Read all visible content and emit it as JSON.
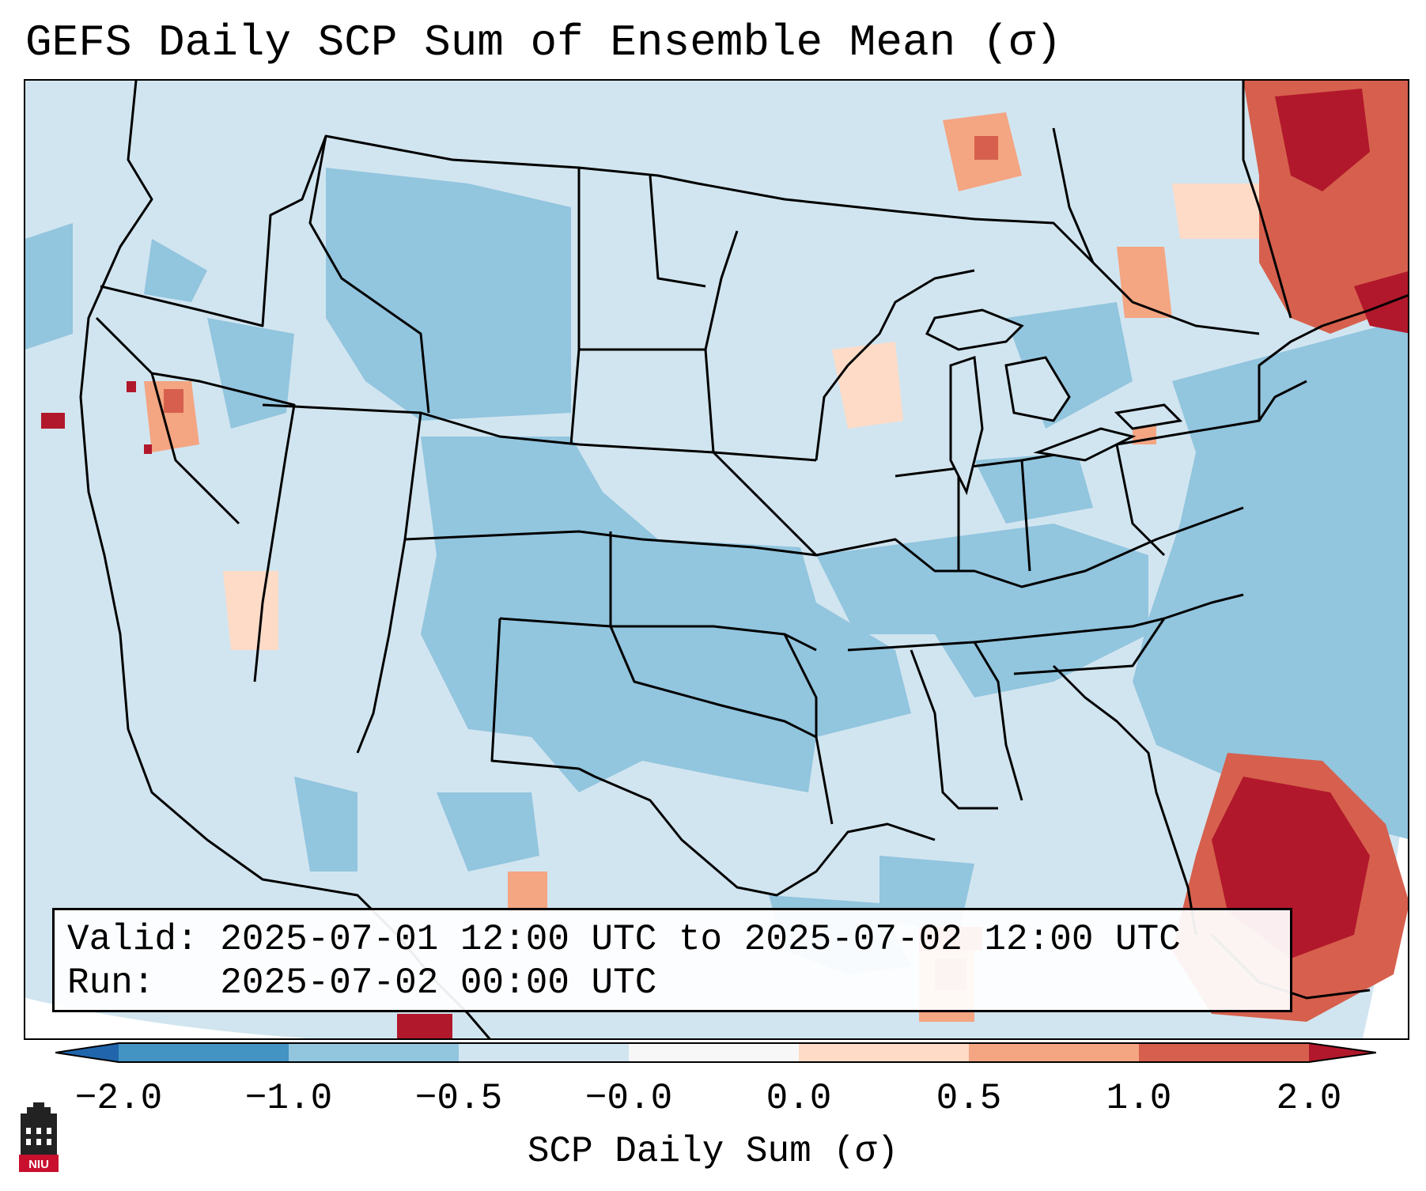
{
  "title": "GEFS Daily SCP Sum of Ensemble Mean (σ)",
  "info": {
    "valid_label": "Valid:",
    "valid_value": "2025-07-01 12:00 UTC to 2025-07-02 12:00 UTC",
    "run_label": "Run:",
    "run_value": "2025-07-02 00:00 UTC"
  },
  "colorbar": {
    "label": "SCP Daily Sum (σ)",
    "ticks": [
      "−2.0",
      "−1.0",
      "−0.5",
      "−0.0",
      "0.0",
      "0.5",
      "1.0",
      "2.0"
    ],
    "colors": [
      "#4393c3",
      "#92c5de",
      "#d1e5f0",
      "#f7f7f7",
      "#fddbc7",
      "#f4a582",
      "#d6604d",
      "#b2182b"
    ],
    "extend_low_color": "#2166ac",
    "extend_high_color": "#b2182b"
  },
  "map": {
    "land_color": "#d1e5f0",
    "ocean_color": "#92c5de",
    "state_line_color": "#000000"
  },
  "logo": {
    "text": "NIU",
    "color": "#c8102e"
  }
}
